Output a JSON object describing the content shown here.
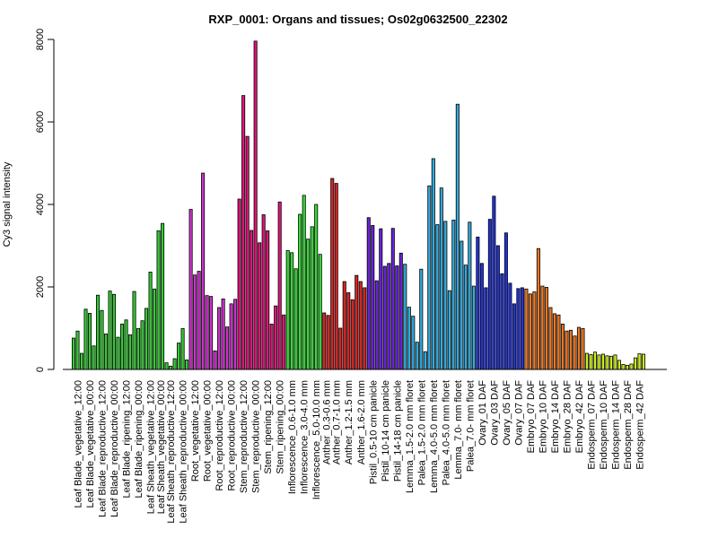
{
  "chart_data": {
    "type": "bar",
    "title": "RXP_0001: Organs and tissues; Os02g0632500_22302",
    "xlabel": "",
    "ylabel": "Cy3 signal intensity",
    "ylim": [
      0,
      8000
    ],
    "yticks": [
      0,
      2000,
      4000,
      6000,
      8000
    ],
    "grid": false,
    "legend": "none",
    "groups": [
      {
        "label": "Leaf Blade_vegetative_12:00",
        "color": "#33cc33",
        "values": [
          760,
          930,
          390
        ]
      },
      {
        "label": "Leaf Blade_vegetative_00:00",
        "color": "#33cc33",
        "values": [
          1460,
          1360,
          570
        ]
      },
      {
        "label": "Leaf Blade_reproductive_12:00",
        "color": "#33cc33",
        "values": [
          1800,
          1430,
          860
        ]
      },
      {
        "label": "Leaf Blade_reproductive_00:00",
        "color": "#33cc33",
        "values": [
          1900,
          1820,
          780
        ]
      },
      {
        "label": "Leaf Blade_ripening_12:00",
        "color": "#33cc33",
        "values": [
          1100,
          1200,
          840
        ]
      },
      {
        "label": "Leaf Blade_ripening_00:00",
        "color": "#33cc33",
        "values": [
          1890,
          990,
          1180
        ]
      },
      {
        "label": "Leaf Sheath_vegetative_12:00",
        "color": "#33cc33",
        "values": [
          1480,
          2360,
          1950
        ]
      },
      {
        "label": "Leaf Sheath_vegetative_00:00",
        "color": "#33cc33",
        "values": [
          3360,
          3540
        ]
      },
      {
        "label": "Leaf Sheath_reproductive_12:00",
        "color": "#33cc33",
        "values": [
          160,
          80,
          260
        ]
      },
      {
        "label": "Leaf Sheath_reproductive_00:00",
        "color": "#33cc33",
        "values": [
          640,
          990,
          230
        ]
      },
      {
        "label": "Root_vegetative_12:00",
        "color": "#cc33cc",
        "values": [
          3880,
          2290,
          2380
        ]
      },
      {
        "label": "Root_vegetative_00:00",
        "color": "#cc33cc",
        "values": [
          4760,
          1790,
          1770
        ]
      },
      {
        "label": "Root_reproductive_12:00",
        "color": "#cc33cc",
        "values": [
          450,
          1500,
          1710
        ]
      },
      {
        "label": "Root_reproductive_00:00",
        "color": "#cc33cc",
        "values": [
          1030,
          1590,
          1700
        ]
      },
      {
        "label": "Stem_reproductive_12:00",
        "color": "#e0157a",
        "values": [
          4130,
          6640,
          5650
        ]
      },
      {
        "label": "Stem_reproductive_00:00",
        "color": "#e0157a",
        "values": [
          3370,
          7960,
          3070
        ]
      },
      {
        "label": "Stem_ripening_12:00",
        "color": "#e0157a",
        "values": [
          3750,
          3360,
          1100
        ]
      },
      {
        "label": "Stem_ripening_00:00",
        "color": "#e0157a",
        "values": [
          1540,
          4060,
          1320
        ]
      },
      {
        "label": "Inflorescence_0.6-1.0 mm",
        "color": "#33dd33",
        "values": [
          2880,
          2830,
          2440
        ]
      },
      {
        "label": "Inflorescence_3.0-4.0 mm",
        "color": "#33dd33",
        "values": [
          3760,
          4220,
          3160
        ]
      },
      {
        "label": "Inflorescence_5.0-10.0 mm",
        "color": "#33dd33",
        "values": [
          3460,
          4000,
          2790
        ]
      },
      {
        "label": "Anther_0.3-0.6 mm",
        "color": "#dd2222",
        "values": [
          1370,
          1310
        ]
      },
      {
        "label": "Anther_0.7-1.0 mm",
        "color": "#dd2222",
        "values": [
          4630,
          4510,
          1000
        ]
      },
      {
        "label": "Anther_1.2-1.5 mm",
        "color": "#dd2222",
        "values": [
          2130,
          1860,
          1690
        ]
      },
      {
        "label": "Anther_1.6-2.0 mm",
        "color": "#dd2222",
        "values": [
          2280,
          2130,
          1980
        ]
      },
      {
        "label": "Pistil_0.5-10 cm panicle",
        "color": "#6a22dd",
        "values": [
          3680,
          3490,
          2150
        ]
      },
      {
        "label": "Pistil_10-14 cm panicle",
        "color": "#6a22dd",
        "values": [
          3410,
          2500,
          2570
        ]
      },
      {
        "label": "Pistil_14-18 cm panicle",
        "color": "#6a22dd",
        "values": [
          3420,
          2510,
          2820
        ]
      },
      {
        "label": "Lemma_1.5-2.0 mm floret",
        "color": "#33aadd",
        "values": [
          2550,
          1510,
          1290
        ]
      },
      {
        "label": "Palea_1.5-2.0 mm floret",
        "color": "#33aadd",
        "values": [
          660,
          2430,
          430
        ]
      },
      {
        "label": "Lemma_4.0-5.0 mm floret",
        "color": "#33aadd",
        "values": [
          4450,
          5110,
          3510
        ]
      },
      {
        "label": "Palea_4.0-5.0 mm floret",
        "color": "#33aadd",
        "values": [
          4400,
          3590,
          1910
        ]
      },
      {
        "label": "Lemma_7.0- mm floret",
        "color": "#33aadd",
        "values": [
          3620,
          6430,
          3110
        ]
      },
      {
        "label": "Palea_7.0- mm floret",
        "color": "#33aadd",
        "values": [
          2530,
          3570,
          2020
        ]
      },
      {
        "label": "Ovary_01 DAF",
        "color": "#2233dd",
        "values": [
          3210,
          2570,
          1980
        ]
      },
      {
        "label": "Ovary_03 DAF",
        "color": "#2233dd",
        "values": [
          3640,
          4200,
          3000
        ]
      },
      {
        "label": "Ovary_05 DAF",
        "color": "#2233dd",
        "values": [
          2320,
          3310,
          2090
        ]
      },
      {
        "label": "Ovary_07 DAF",
        "color": "#2233dd",
        "values": [
          1590,
          1960,
          1980
        ]
      },
      {
        "label": "Embryo_07 DAF",
        "color": "#ee7722",
        "values": [
          1950,
          1830,
          1880
        ]
      },
      {
        "label": "Embryo_10 DAF",
        "color": "#ee7722",
        "values": [
          2930,
          2020,
          1990
        ]
      },
      {
        "label": "Embryo_14 DAF",
        "color": "#ee7722",
        "values": [
          1500,
          1350,
          1320
        ]
      },
      {
        "label": "Embryo_28 DAF",
        "color": "#ee7722",
        "values": [
          1100,
          930,
          950
        ]
      },
      {
        "label": "Embryo_42 DAF",
        "color": "#ee7722",
        "values": [
          810,
          1020,
          990
        ]
      },
      {
        "label": "Endosperm_07 DAF",
        "color": "#ccee22",
        "values": [
          390,
          360,
          420
        ]
      },
      {
        "label": "Endosperm_10 DAF",
        "color": "#ccee22",
        "values": [
          350,
          370,
          330
        ]
      },
      {
        "label": "Endosperm_14 DAF",
        "color": "#ccee22",
        "values": [
          320,
          350,
          220
        ]
      },
      {
        "label": "Endosperm_28 DAF",
        "color": "#ccee22",
        "values": [
          120,
          100,
          130
        ]
      },
      {
        "label": "Endosperm_42 DAF",
        "color": "#ccee22",
        "values": [
          280,
          380,
          370
        ]
      }
    ]
  }
}
